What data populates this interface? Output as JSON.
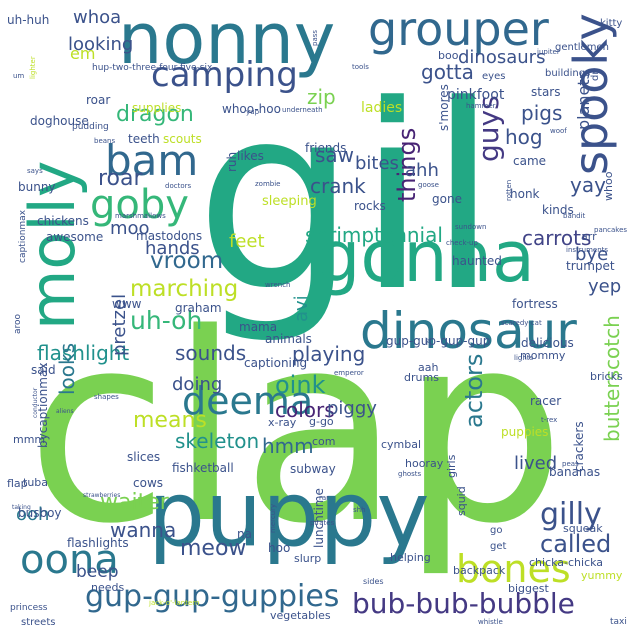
{
  "words": [
    {
      "text": "clap",
      "color": "#7ad151"
    },
    {
      "text": "gil",
      "color": "#22a884"
    },
    {
      "text": "puppy",
      "color": "#2a788e"
    },
    {
      "text": "gonna",
      "color": "#22a884"
    },
    {
      "text": "nonny",
      "color": "#2a788e"
    },
    {
      "text": "molly",
      "color": "#22a884"
    },
    {
      "text": "dinosaur",
      "color": "#2a788e"
    },
    {
      "text": "grouper",
      "color": "#31688e"
    },
    {
      "text": "spooky",
      "color": "#3b528b"
    },
    {
      "text": "bam",
      "color": "#31688e"
    },
    {
      "text": "camping",
      "color": "#3b528b"
    },
    {
      "text": "goby",
      "color": "#35b779"
    },
    {
      "text": "deema",
      "color": "#2a788e"
    },
    {
      "text": "oona",
      "color": "#2a788e"
    },
    {
      "text": "bones",
      "color": "#bddf26"
    },
    {
      "text": "gup-gup-guppies",
      "color": "#31688e"
    },
    {
      "text": "bub-bub-bubble",
      "color": "#443983"
    },
    {
      "text": "uh-oh",
      "color": "#35b779"
    },
    {
      "text": "marching",
      "color": "#bddf26"
    },
    {
      "text": "vroom",
      "color": "#31688e"
    },
    {
      "text": "shrimptennial",
      "color": "#22a884"
    },
    {
      "text": "things",
      "color": "#482475"
    },
    {
      "text": "guys",
      "color": "#443983"
    },
    {
      "text": "gilly",
      "color": "#3b528b"
    },
    {
      "text": "oink",
      "color": "#21918c"
    },
    {
      "text": "meow",
      "color": "#3b528b"
    },
    {
      "text": "called",
      "color": "#3b528b"
    },
    {
      "text": "actors",
      "color": "#2a788e"
    },
    {
      "text": "butterscotch",
      "color": "#7ad151"
    },
    {
      "text": "crank",
      "color": "#3b528b"
    },
    {
      "text": "saw",
      "color": "#3b528b"
    },
    {
      "text": "carrots",
      "color": "#414487"
    },
    {
      "text": "dragon",
      "color": "#35b779"
    },
    {
      "text": "roar",
      "color": "#3b528b"
    },
    {
      "text": "playing",
      "color": "#3b528b"
    },
    {
      "text": "colors",
      "color": "#482475"
    },
    {
      "text": "skeleton",
      "color": "#21918c"
    },
    {
      "text": "means",
      "color": "#bddf26"
    },
    {
      "text": "flashlight",
      "color": "#21918c"
    },
    {
      "text": "sounds",
      "color": "#3b528b"
    },
    {
      "text": "looking",
      "color": "#3b528b"
    },
    {
      "text": "dinosaurs",
      "color": "#3b528b"
    },
    {
      "text": "waiter",
      "color": "#7ad151"
    },
    {
      "text": "wanna",
      "color": "#3b528b"
    },
    {
      "text": "hmm",
      "color": "#31688e"
    },
    {
      "text": "looks",
      "color": "#2a788e"
    },
    {
      "text": "doing",
      "color": "#3b528b"
    },
    {
      "text": "pretzel",
      "color": "#3b528b"
    },
    {
      "text": "zip",
      "color": "#7ad151"
    },
    {
      "text": "whoa",
      "color": "#3b528b"
    },
    {
      "text": "gotta",
      "color": "#3b528b"
    },
    {
      "text": "hog",
      "color": "#3b528b"
    },
    {
      "text": "pigs",
      "color": "#3b528b"
    },
    {
      "text": "yay",
      "color": "#3b528b"
    },
    {
      "text": "bites",
      "color": "#3b528b"
    },
    {
      "text": "ahh",
      "color": "#3b528b"
    },
    {
      "text": "moo",
      "color": "#3b528b"
    },
    {
      "text": "hands",
      "color": "#3b528b"
    },
    {
      "text": "feet",
      "color": "#bddf26"
    },
    {
      "text": "avi",
      "color": "#21918c"
    },
    {
      "text": "bye",
      "color": "#3b528b"
    },
    {
      "text": "yep",
      "color": "#3b528b"
    },
    {
      "text": "lived",
      "color": "#3b528b"
    },
    {
      "text": "piggy",
      "color": "#3b528b"
    },
    {
      "text": "ooh",
      "color": "#2a788e"
    },
    {
      "text": "beep",
      "color": "#3b528b"
    },
    {
      "text": "planets",
      "color": "#3b528b"
    },
    {
      "text": "pinkfoot",
      "color": "#3b528b"
    },
    {
      "text": "em",
      "color": "#bddf26"
    },
    {
      "text": "uh-huh",
      "color": "#3b528b"
    },
    {
      "text": "boo",
      "color": "#3b528b"
    },
    {
      "text": "hup-two-three-four-five-six",
      "color": "#3b528b"
    },
    {
      "text": "supplies",
      "color": "#bddf26"
    },
    {
      "text": "whoo-hoo",
      "color": "#3b528b"
    },
    {
      "text": "ladies",
      "color": "#bddf26"
    },
    {
      "text": "stars",
      "color": "#3b528b"
    },
    {
      "text": "doghouse",
      "color": "#3b528b"
    },
    {
      "text": "teeth",
      "color": "#3b528b"
    },
    {
      "text": "scouts",
      "color": "#bddf26"
    },
    {
      "text": "friends",
      "color": "#3b528b"
    },
    {
      "text": "s'mores",
      "color": "#3b528b"
    },
    {
      "text": "roar",
      "color": "#3b528b"
    },
    {
      "text": "bunny",
      "color": "#3b528b"
    },
    {
      "text": "likes",
      "color": "#3b528b"
    },
    {
      "text": "came",
      "color": "#3b528b"
    },
    {
      "text": "kinds",
      "color": "#3b528b"
    },
    {
      "text": "honk",
      "color": "#3b528b"
    },
    {
      "text": "ruh",
      "color": "#3b528b"
    },
    {
      "text": "sleeping",
      "color": "#bddf26"
    },
    {
      "text": "rocks",
      "color": "#3b528b"
    },
    {
      "text": "gone",
      "color": "#3b528b"
    },
    {
      "text": "chickens",
      "color": "#3b528b"
    },
    {
      "text": "awesome",
      "color": "#3b528b"
    },
    {
      "text": "mastodons",
      "color": "#3b528b"
    },
    {
      "text": "haunted",
      "color": "#3b528b"
    },
    {
      "text": "arr",
      "color": "#3b528b"
    },
    {
      "text": "www",
      "color": "#3b528b"
    },
    {
      "text": "graham",
      "color": "#3b528b"
    },
    {
      "text": "mama",
      "color": "#3b528b"
    },
    {
      "text": "animals",
      "color": "#3b528b"
    },
    {
      "text": "fortress",
      "color": "#3b528b"
    },
    {
      "text": "delicious",
      "color": "#3b528b"
    },
    {
      "text": "trumpet",
      "color": "#3b528b"
    },
    {
      "text": "mommy",
      "color": "#3b528b"
    },
    {
      "text": "captioning",
      "color": "#3b528b"
    },
    {
      "text": "said",
      "color": "#3b528b"
    },
    {
      "text": "aah",
      "color": "#3b528b"
    },
    {
      "text": "drums",
      "color": "#3b528b"
    },
    {
      "text": "gup-gup-gup-gup",
      "color": "#3b528b"
    },
    {
      "text": "bricks",
      "color": "#3b528b"
    },
    {
      "text": "racer",
      "color": "#3b528b"
    },
    {
      "text": "puppies",
      "color": "#bddf26"
    },
    {
      "text": "mmm",
      "color": "#3b528b"
    },
    {
      "text": "x-ray",
      "color": "#3b528b"
    },
    {
      "text": "g-go",
      "color": "#3b528b"
    },
    {
      "text": "com",
      "color": "#3b528b"
    },
    {
      "text": "cymbal",
      "color": "#3b528b"
    },
    {
      "text": "hooray",
      "color": "#3b528b"
    },
    {
      "text": "girls",
      "color": "#3b528b"
    },
    {
      "text": "bananas",
      "color": "#3b528b"
    },
    {
      "text": "crackers",
      "color": "#3b528b"
    },
    {
      "text": "slices",
      "color": "#3b528b"
    },
    {
      "text": "fishketball",
      "color": "#3b528b"
    },
    {
      "text": "subway",
      "color": "#3b528b"
    },
    {
      "text": "cows",
      "color": "#3b528b"
    },
    {
      "text": "flap",
      "color": "#3b528b"
    },
    {
      "text": "tuba",
      "color": "#3b528b"
    },
    {
      "text": "busboy",
      "color": "#3b528b"
    },
    {
      "text": "flashlights",
      "color": "#3b528b"
    },
    {
      "text": "hoo",
      "color": "#3b528b"
    },
    {
      "text": "na",
      "color": "#3b528b"
    },
    {
      "text": "lunchtime",
      "color": "#3b528b"
    },
    {
      "text": "squid",
      "color": "#3b528b"
    },
    {
      "text": "squeak",
      "color": "#3b528b"
    },
    {
      "text": "slurp",
      "color": "#3b528b"
    },
    {
      "text": "helping",
      "color": "#3b528b"
    },
    {
      "text": "backpack",
      "color": "#3b528b"
    },
    {
      "text": "chicka-chicka",
      "color": "#3b528b"
    },
    {
      "text": "yummy",
      "color": "#bddf26"
    },
    {
      "text": "biggest",
      "color": "#3b528b"
    },
    {
      "text": "needs",
      "color": "#3b528b"
    },
    {
      "text": "vegetables",
      "color": "#3b528b"
    },
    {
      "text": "streets",
      "color": "#3b528b"
    },
    {
      "text": "princess",
      "color": "#3b528b"
    },
    {
      "text": "kitty",
      "color": "#3b528b"
    },
    {
      "text": "gentlemen",
      "color": "#3b528b"
    },
    {
      "text": "buildings",
      "color": "#3b528b"
    },
    {
      "text": "eyes",
      "color": "#3b528b"
    },
    {
      "text": "dr",
      "color": "#3b528b"
    },
    {
      "text": "whoo",
      "color": "#3b528b"
    },
    {
      "text": "taxi",
      "color": "#3b528b"
    },
    {
      "text": "pancakes",
      "color": "#3b528b"
    },
    {
      "text": "instruments",
      "color": "#3b528b"
    },
    {
      "text": "sundown",
      "color": "#3b528b"
    },
    {
      "text": "check-up",
      "color": "#3b528b"
    },
    {
      "text": "scaredy-cat",
      "color": "#3b528b"
    },
    {
      "text": "lights",
      "color": "#3b528b"
    },
    {
      "text": "t-rex",
      "color": "#3b528b"
    },
    {
      "text": "peas",
      "color": "#3b528b"
    },
    {
      "text": "ghosts",
      "color": "#3b528b"
    },
    {
      "text": "rar",
      "color": "#3b528b"
    },
    {
      "text": "pirates",
      "color": "#3b528b"
    },
    {
      "text": "mercury",
      "color": "#3b528b"
    },
    {
      "text": "sides",
      "color": "#3b528b"
    },
    {
      "text": "jack-o'-lantern",
      "color": "#bddf26"
    },
    {
      "text": "whistle",
      "color": "#3b528b"
    },
    {
      "text": "strawberries",
      "color": "#3b528b"
    },
    {
      "text": "conductor",
      "color": "#3b528b"
    },
    {
      "text": "aliens",
      "color": "#3b528b"
    },
    {
      "text": "shapes",
      "color": "#3b528b"
    },
    {
      "text": "emperor",
      "color": "#3b528b"
    },
    {
      "text": "taking",
      "color": "#3b528b"
    },
    {
      "text": "bycaptionmax",
      "color": "#3b528b"
    },
    {
      "text": "aroo",
      "color": "#3b528b"
    },
    {
      "text": "captionmax",
      "color": "#3b528b"
    },
    {
      "text": "wrench",
      "color": "#3b528b"
    },
    {
      "text": "marshmallows",
      "color": "#3b528b"
    },
    {
      "text": "zombie",
      "color": "#3b528b"
    },
    {
      "text": "pudding",
      "color": "#3b528b"
    },
    {
      "text": "beans",
      "color": "#3b528b"
    },
    {
      "text": "yup",
      "color": "#3b528b"
    },
    {
      "text": "underneath",
      "color": "#3b528b"
    },
    {
      "text": "hammer",
      "color": "#3b528b"
    },
    {
      "text": "woof",
      "color": "#3b528b"
    },
    {
      "text": "jupiter",
      "color": "#3b528b"
    },
    {
      "text": "tools",
      "color": "#3b528b"
    },
    {
      "text": "um",
      "color": "#3b528b"
    },
    {
      "text": "lighter",
      "color": "#bddf26"
    },
    {
      "text": "says",
      "color": "#3b528b"
    },
    {
      "text": "bandit",
      "color": "#3b528b"
    },
    {
      "text": "rotten",
      "color": "#3b528b"
    },
    {
      "text": "goose",
      "color": "#3b528b"
    },
    {
      "text": "doctors",
      "color": "#3b528b"
    },
    {
      "text": "shh",
      "color": "#3b528b"
    },
    {
      "text": "la",
      "color": "#3b528b"
    },
    {
      "text": "get",
      "color": "#3b528b"
    },
    {
      "text": "go",
      "color": "#3b528b"
    },
    {
      "text": "pass",
      "color": "#3b528b"
    }
  ]
}
